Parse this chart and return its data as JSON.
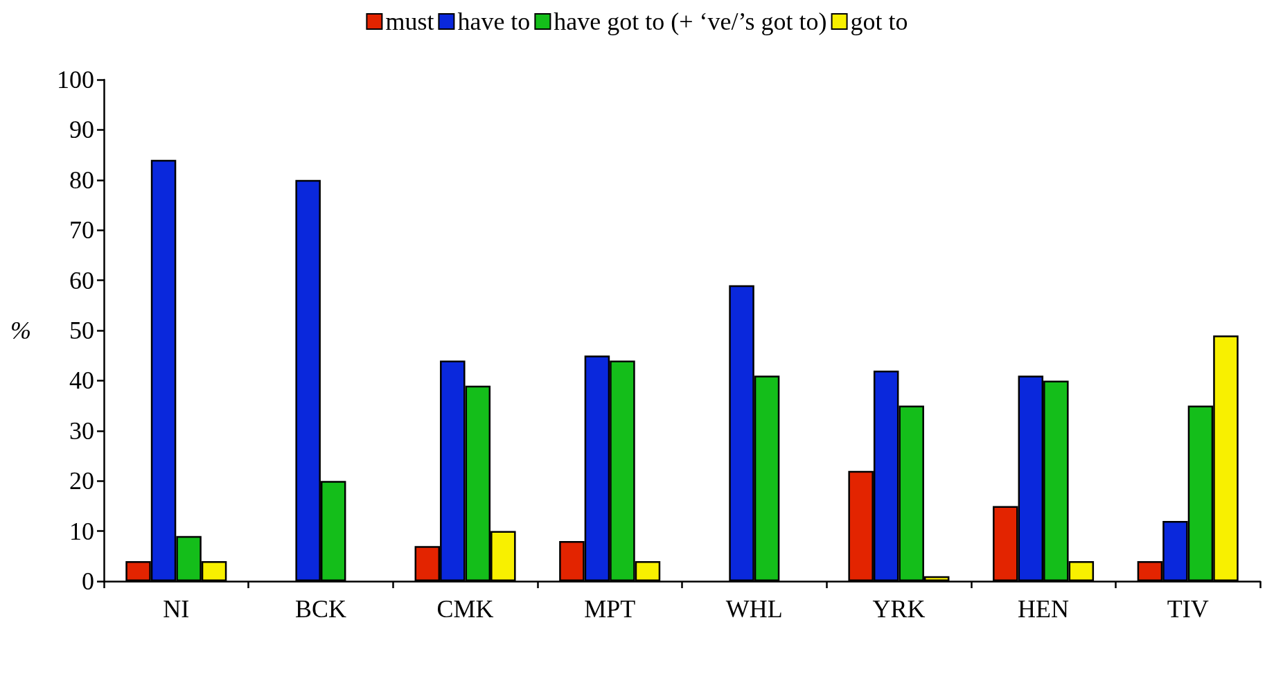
{
  "chart_data": {
    "type": "bar",
    "ylabel": "%",
    "categories": [
      "NI",
      "BCK",
      "CMK",
      "MPT",
      "WHL",
      "YRK",
      "HEN",
      "TIV"
    ],
    "series": [
      {
        "name": "must",
        "color": "#e32400",
        "values": [
          4,
          null,
          7,
          8,
          null,
          22,
          15,
          4
        ]
      },
      {
        "name": "have to",
        "color": "#0a28dc",
        "values": [
          84,
          80,
          44,
          45,
          59,
          42,
          41,
          12
        ]
      },
      {
        "name": "have got to (+ ‘ve/’s got to)",
        "color": "#14be1a",
        "values": [
          9,
          20,
          39,
          44,
          41,
          35,
          40,
          35
        ]
      },
      {
        "name": "got to",
        "color": "#f8f000",
        "values": [
          4,
          null,
          10,
          4,
          null,
          1,
          4,
          49
        ]
      }
    ],
    "ylim": [
      0,
      100
    ],
    "yticks": [
      0,
      10,
      20,
      30,
      40,
      50,
      60,
      70,
      80,
      90,
      100
    ],
    "grid": false,
    "legend": "top"
  }
}
